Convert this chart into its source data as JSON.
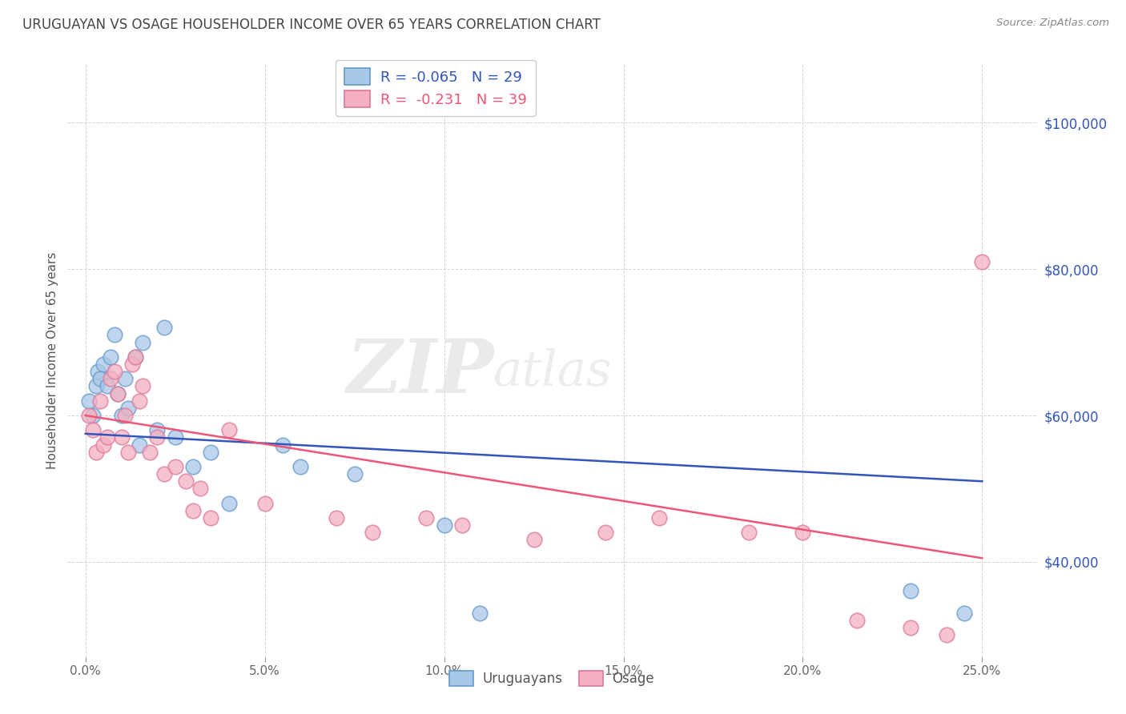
{
  "title": "URUGUAYAN VS OSAGE HOUSEHOLDER INCOME OVER 65 YEARS CORRELATION CHART",
  "source": "Source: ZipAtlas.com",
  "ylabel": "Householder Income Over 65 years",
  "xlabel_ticks": [
    "0.0%",
    "5.0%",
    "10.0%",
    "15.0%",
    "20.0%",
    "25.0%"
  ],
  "xlabel_vals": [
    0.0,
    5.0,
    10.0,
    15.0,
    20.0,
    25.0
  ],
  "ytick_vals": [
    40000,
    60000,
    80000,
    100000
  ],
  "ytick_labels": [
    "$40,000",
    "$60,000",
    "$80,000",
    "$100,000"
  ],
  "ylim": [
    27000,
    108000
  ],
  "xlim": [
    -0.5,
    26.5
  ],
  "uruguayan_color": "#A8C8E8",
  "osage_color": "#F4B0C0",
  "uruguayan_edge": "#6699CC",
  "osage_edge": "#DD7799",
  "line_blue": "#3355BB",
  "line_pink": "#EE5577",
  "legend_label_blue": "Uruguayans",
  "legend_label_pink": "Osage",
  "watermark_zip": "ZIP",
  "watermark_atlas": "atlas",
  "background_color": "#FFFFFF",
  "grid_color": "#CCCCCC",
  "title_color": "#444444",
  "source_color": "#888888",
  "uruguayan_x": [
    0.1,
    0.2,
    0.3,
    0.35,
    0.4,
    0.5,
    0.6,
    0.7,
    0.8,
    0.9,
    1.0,
    1.1,
    1.2,
    1.4,
    1.5,
    1.6,
    2.0,
    2.2,
    2.5,
    3.0,
    3.5,
    4.0,
    5.5,
    6.0,
    7.5,
    10.0,
    11.0,
    23.0,
    24.5
  ],
  "uruguayan_y": [
    62000,
    60000,
    64000,
    66000,
    65000,
    67000,
    64000,
    68000,
    71000,
    63000,
    60000,
    65000,
    61000,
    68000,
    56000,
    70000,
    58000,
    72000,
    57000,
    53000,
    55000,
    48000,
    56000,
    53000,
    52000,
    45000,
    33000,
    36000,
    33000
  ],
  "osage_x": [
    0.1,
    0.2,
    0.3,
    0.4,
    0.5,
    0.6,
    0.7,
    0.8,
    0.9,
    1.0,
    1.1,
    1.2,
    1.3,
    1.4,
    1.5,
    1.6,
    1.8,
    2.0,
    2.2,
    2.5,
    2.8,
    3.0,
    3.2,
    3.5,
    4.0,
    5.0,
    7.0,
    8.0,
    9.5,
    10.5,
    12.5,
    14.5,
    16.0,
    18.5,
    20.0,
    21.5,
    23.0,
    24.0,
    25.0
  ],
  "osage_y": [
    60000,
    58000,
    55000,
    62000,
    56000,
    57000,
    65000,
    66000,
    63000,
    57000,
    60000,
    55000,
    67000,
    68000,
    62000,
    64000,
    55000,
    57000,
    52000,
    53000,
    51000,
    47000,
    50000,
    46000,
    58000,
    48000,
    46000,
    44000,
    46000,
    45000,
    43000,
    44000,
    46000,
    44000,
    44000,
    32000,
    31000,
    30000,
    81000
  ],
  "uru_line_x0": 0.0,
  "uru_line_y0": 57500,
  "uru_line_x1": 25.0,
  "uru_line_y1": 51000,
  "osage_line_x0": 0.0,
  "osage_line_y0": 60000,
  "osage_line_x1": 25.0,
  "osage_line_y1": 40500
}
